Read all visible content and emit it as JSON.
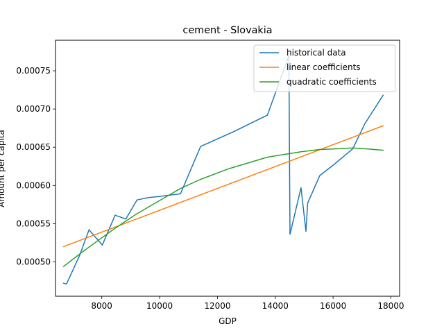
{
  "chart_data": {
    "type": "line",
    "title": "cement - Slovakia",
    "xlabel": "GDP",
    "ylabel": "Amount per capita",
    "xlim": [
      6400,
      18300
    ],
    "ylim": [
      0.000455,
      0.00079
    ],
    "x_ticks": [
      8000,
      10000,
      12000,
      14000,
      16000,
      18000
    ],
    "y_ticks": [
      0.0005,
      0.00055,
      0.0006,
      0.00065,
      0.0007,
      0.00075
    ],
    "x_tick_labels": [
      "8000",
      "10000",
      "12000",
      "14000",
      "16000",
      "18000"
    ],
    "y_tick_labels": [
      "0.00050",
      "0.00055",
      "0.00060",
      "0.00065",
      "0.00070",
      "0.00075"
    ],
    "grid": false,
    "legend_position": "top-right",
    "series": [
      {
        "name": "historical data",
        "color": "#1f77b4",
        "x": [
          6680,
          6780,
          7230,
          7560,
          8020,
          8460,
          8830,
          9220,
          9610,
          10080,
          10720,
          11420,
          12540,
          13730,
          14470,
          14510,
          14890,
          15060,
          15120,
          15540,
          16020,
          16680,
          17100,
          17730
        ],
        "y": [
          0.000472,
          0.000471,
          0.000508,
          0.000542,
          0.000522,
          0.000561,
          0.000556,
          0.000581,
          0.000584,
          0.000586,
          0.000589,
          0.000651,
          0.00067,
          0.000692,
          0.00077,
          0.000536,
          0.000597,
          0.00054,
          0.000577,
          0.000613,
          0.000627,
          0.000648,
          0.000681,
          0.000718
        ]
      },
      {
        "name": "linear coefficients",
        "color": "#ff7f0e",
        "x": [
          6680,
          17730
        ],
        "y": [
          0.00052,
          0.000678
        ]
      },
      {
        "name": "quadratic coefficients",
        "color": "#2ca02c",
        "x": [
          6680,
          7230,
          7800,
          8460,
          9220,
          10080,
          10720,
          11420,
          12400,
          13730,
          14890,
          15540,
          16200,
          16680,
          17100,
          17730
        ],
        "y": [
          0.000494,
          0.00051,
          0.000526,
          0.000544,
          0.000563,
          0.000582,
          0.000596,
          0.000608,
          0.000622,
          0.000637,
          0.000644,
          0.000647,
          0.000648,
          0.000649,
          0.000648,
          0.000646
        ]
      }
    ]
  }
}
